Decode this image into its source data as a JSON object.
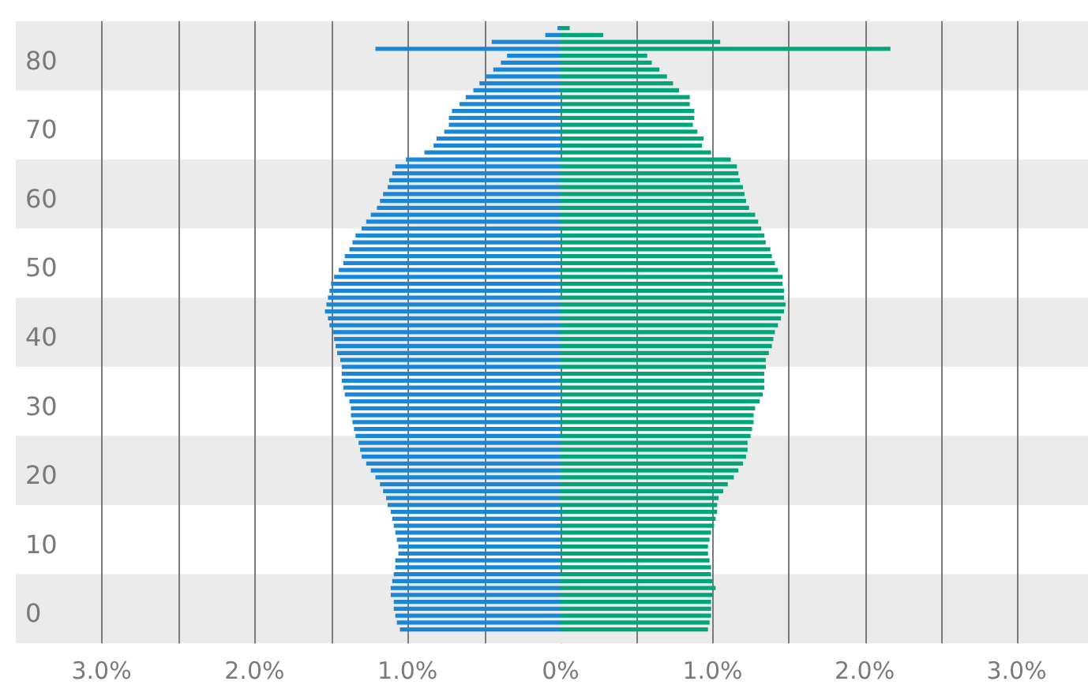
{
  "chart_data": [
    {
      "type": "bar",
      "orientation": "horizontal",
      "categories": [
        null,
        null,
        null,
        null,
        null,
        "80",
        null,
        null,
        null,
        null,
        null,
        null,
        null,
        null,
        null,
        "70",
        null,
        null,
        null,
        null,
        null,
        null,
        null,
        null,
        null,
        "60",
        null,
        null,
        null,
        null,
        null,
        null,
        null,
        null,
        null,
        "50",
        null,
        null,
        null,
        null,
        null,
        null,
        null,
        null,
        null,
        "40",
        null,
        null,
        null,
        null,
        null,
        null,
        null,
        null,
        null,
        "30",
        null,
        null,
        null,
        null,
        null,
        null,
        null,
        null,
        null,
        "20",
        null,
        null,
        null,
        null,
        null,
        null,
        null,
        null,
        null,
        "10",
        null,
        null,
        null,
        null,
        null,
        null,
        null,
        null,
        null,
        "0",
        null,
        null
      ],
      "series": [
        {
          "color": "#1a87d6",
          "values": [
            0.02,
            0.1,
            0.45,
            1.21,
            0.35,
            0.39,
            0.44,
            0.49,
            0.53,
            0.57,
            0.62,
            0.66,
            0.71,
            0.73,
            0.73,
            0.76,
            0.81,
            0.83,
            0.89,
            1.01,
            1.08,
            1.1,
            1.12,
            1.13,
            1.16,
            1.18,
            1.2,
            1.24,
            1.27,
            1.3,
            1.34,
            1.36,
            1.38,
            1.41,
            1.42,
            1.45,
            1.48,
            1.5,
            1.51,
            1.52,
            1.53,
            1.54,
            1.52,
            1.51,
            1.49,
            1.48,
            1.47,
            1.46,
            1.44,
            1.43,
            1.43,
            1.43,
            1.42,
            1.41,
            1.38,
            1.37,
            1.37,
            1.36,
            1.35,
            1.34,
            1.32,
            1.31,
            1.3,
            1.27,
            1.24,
            1.21,
            1.18,
            1.16,
            1.14,
            1.13,
            1.11,
            1.1,
            1.09,
            1.08,
            1.07,
            1.06,
            1.06,
            1.08,
            1.08,
            1.09,
            1.1,
            1.11,
            1.11,
            1.09,
            1.09,
            1.08,
            1.07,
            1.05
          ]
        }
      ],
      "xlim": [
        3.56,
        0
      ],
      "xticks": [
        {
          "value": 3,
          "label": "3.0%"
        },
        {
          "value": 2.5,
          "label": null
        },
        {
          "value": 2,
          "label": "2.0%"
        },
        {
          "value": 1.5,
          "label": null
        },
        {
          "value": 1,
          "label": "1.0%"
        },
        {
          "value": 0.5,
          "label": null
        },
        {
          "value": 0,
          "label": "0%"
        }
      ],
      "grid": "x",
      "legend": false
    },
    {
      "type": "bar",
      "orientation": "horizontal",
      "categories": [
        null,
        null,
        null,
        null,
        null,
        "80",
        null,
        null,
        null,
        null,
        null,
        null,
        null,
        null,
        null,
        "70",
        null,
        null,
        null,
        null,
        null,
        null,
        null,
        null,
        null,
        "60",
        null,
        null,
        null,
        null,
        null,
        null,
        null,
        null,
        null,
        "50",
        null,
        null,
        null,
        null,
        null,
        null,
        null,
        null,
        null,
        "40",
        null,
        null,
        null,
        null,
        null,
        null,
        null,
        null,
        null,
        "30",
        null,
        null,
        null,
        null,
        null,
        null,
        null,
        null,
        null,
        "20",
        null,
        null,
        null,
        null,
        null,
        null,
        null,
        null,
        null,
        "10",
        null,
        null,
        null,
        null,
        null,
        null,
        null,
        null,
        null,
        "0",
        null,
        null
      ],
      "series": [
        {
          "color": "#00a67a",
          "values": [
            0.06,
            0.28,
            1.05,
            2.17,
            0.57,
            0.6,
            0.65,
            0.7,
            0.74,
            0.78,
            0.85,
            0.85,
            0.88,
            0.88,
            0.87,
            0.9,
            0.94,
            0.93,
            0.99,
            1.12,
            1.16,
            1.17,
            1.18,
            1.2,
            1.21,
            1.22,
            1.24,
            1.28,
            1.3,
            1.32,
            1.34,
            1.35,
            1.38,
            1.39,
            1.41,
            1.43,
            1.46,
            1.46,
            1.47,
            1.47,
            1.48,
            1.47,
            1.45,
            1.43,
            1.41,
            1.4,
            1.39,
            1.37,
            1.35,
            1.35,
            1.34,
            1.34,
            1.34,
            1.33,
            1.31,
            1.28,
            1.27,
            1.27,
            1.26,
            1.25,
            1.23,
            1.23,
            1.22,
            1.2,
            1.17,
            1.14,
            1.1,
            1.07,
            1.04,
            1.03,
            1.03,
            1.02,
            1.01,
            0.99,
            0.98,
            0.97,
            0.97,
            0.98,
            0.99,
            0.99,
            1.0,
            1.02,
            1.0,
            0.99,
            0.99,
            0.99,
            0.98,
            0.97
          ]
        }
      ],
      "xlim": [
        0,
        3.47
      ],
      "xticks": [
        {
          "value": 0.5,
          "label": null
        },
        {
          "value": 1,
          "label": "1.0%"
        },
        {
          "value": 1.5,
          "label": null
        },
        {
          "value": 2,
          "label": "2.0%"
        },
        {
          "value": 2.5,
          "label": null
        },
        {
          "value": 3,
          "label": "3.0%"
        }
      ],
      "tick_labels": "x",
      "grid": "x",
      "legend": false
    }
  ]
}
